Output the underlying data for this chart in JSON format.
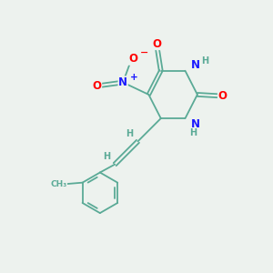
{
  "bg_color": "#edf2ee",
  "bond_color": "#5aaa96",
  "atom_colors": {
    "N": "#1a1aff",
    "O": "#ff0000",
    "C": "#5aaa96",
    "H": "#5aaa96"
  },
  "font_size_atom": 8.5,
  "font_size_small": 7.0,
  "lw": 1.3
}
